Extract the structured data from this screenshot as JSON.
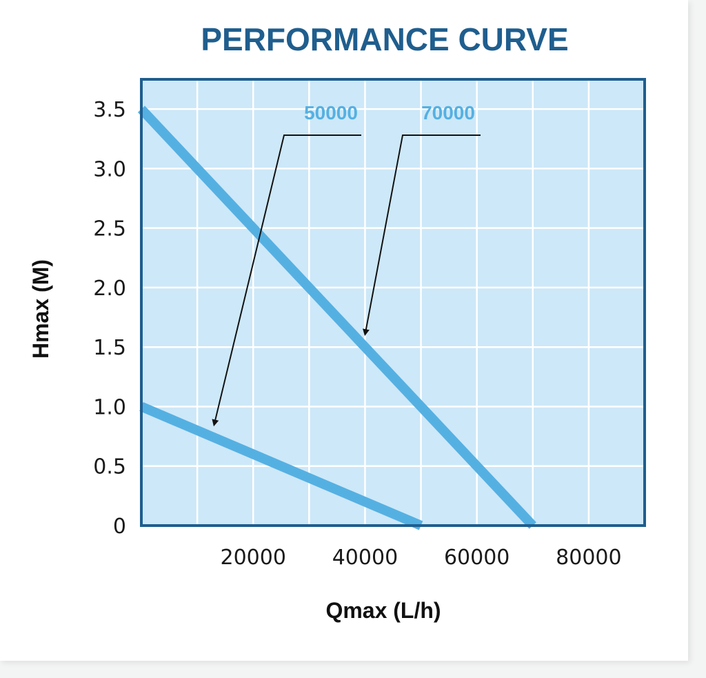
{
  "chart_data": {
    "type": "line",
    "title": "PERFORMANCE CURVE",
    "xlabel": "Qmax (L/h)",
    "ylabel": "Hmax (M)",
    "xlim": [
      0,
      90000
    ],
    "ylim": [
      0,
      3.75
    ],
    "x_ticks": [
      20000,
      40000,
      60000,
      80000
    ],
    "x_tick_labels": [
      "20000",
      "40000",
      "60000",
      "80000"
    ],
    "y_ticks": [
      0,
      0.5,
      1.0,
      1.5,
      2.0,
      2.5,
      3.0,
      3.5
    ],
    "y_tick_labels": [
      "0",
      "0.5",
      "1.0",
      "1.5",
      "2.0",
      "2.5",
      "3.0",
      "3.5"
    ],
    "grid": true,
    "series": [
      {
        "name": "50000",
        "color": "#55b0e2",
        "x": [
          0,
          50000
        ],
        "y": [
          1.0,
          0
        ]
      },
      {
        "name": "70000",
        "color": "#55b0e2",
        "x": [
          0,
          70000
        ],
        "y": [
          3.5,
          0
        ]
      }
    ],
    "colors": {
      "title": "#1f5e8e",
      "plot_background": "#cde8f8",
      "frame": "#1f5e8e",
      "grid": "#ffffff",
      "series": "#55b0e2",
      "arrow": "#111111"
    }
  }
}
